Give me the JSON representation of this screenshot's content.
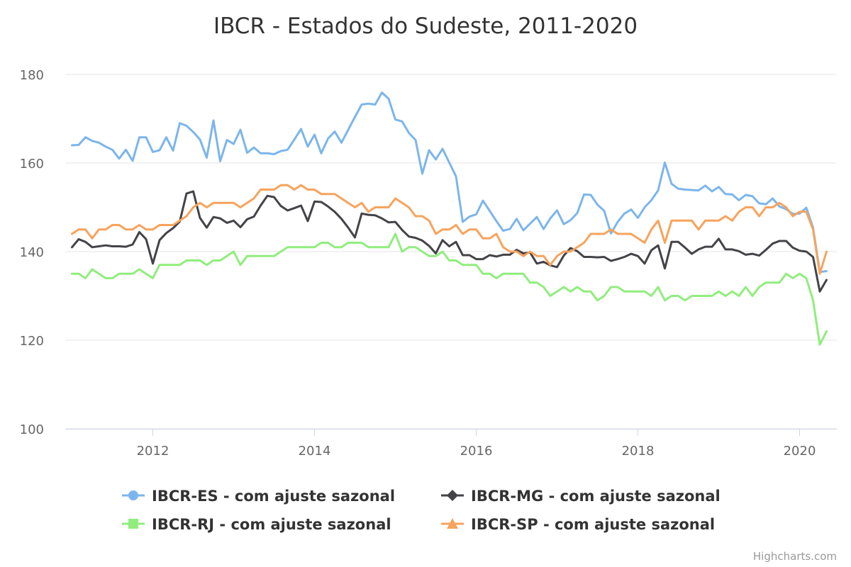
{
  "chart_data": {
    "type": "line",
    "title": "IBCR - Estados do Sudeste, 2011-2020",
    "xlabel": "",
    "ylabel": "",
    "x_start": "2011-01",
    "x_end": "2020-05",
    "xlim": [
      "2011-01",
      "2020-05"
    ],
    "ylim": [
      100,
      180
    ],
    "yticks": [
      100,
      120,
      140,
      160,
      180
    ],
    "xticks": [
      2012,
      2014,
      2016,
      2018,
      2020
    ],
    "grid": true,
    "legend_position": "bottom",
    "series": [
      {
        "name": "IBCR-ES - com ajuste sazonal",
        "color": "#7cb5ec",
        "marker": "circle",
        "values": [
          164.0,
          164.1,
          165.8,
          165.0,
          164.6,
          163.7,
          163.0,
          161.0,
          163.0,
          160.5,
          165.8,
          165.8,
          162.5,
          162.9,
          165.8,
          162.8,
          169.0,
          168.4,
          167.0,
          165.3,
          161.2,
          169.6,
          160.4,
          165.2,
          164.3,
          167.5,
          162.3,
          163.5,
          162.2,
          162.2,
          162.0,
          162.7,
          163.0,
          165.3,
          167.7,
          163.7,
          166.4,
          162.2,
          165.5,
          167.1,
          164.6,
          167.5,
          170.4,
          173.2,
          173.4,
          173.2,
          175.9,
          174.5,
          169.8,
          169.4,
          166.8,
          165.2,
          157.6,
          162.9,
          160.8,
          163.2,
          160.1,
          157.0,
          146.7,
          147.9,
          148.4,
          151.5,
          149.2,
          146.9,
          144.7,
          145.1,
          147.4,
          144.8,
          146.3,
          147.8,
          145.1,
          147.5,
          149.3,
          146.2,
          147.1,
          148.7,
          152.9,
          152.8,
          150.6,
          149.2,
          144.1,
          146.7,
          148.6,
          149.5,
          147.6,
          150.0,
          151.6,
          153.8,
          160.1,
          155.3,
          154.2,
          154.0,
          153.9,
          153.8,
          154.9,
          153.6,
          154.6,
          153.0,
          152.9,
          151.6,
          152.8,
          152.5,
          150.9,
          150.7,
          152.0,
          150.2,
          149.6,
          148.5,
          148.6,
          149.9,
          145.4,
          135.4,
          135.6
        ]
      },
      {
        "name": "IBCR-MG - com ajuste sazonal",
        "color": "#434348",
        "marker": "diamond",
        "values": [
          141.0,
          142.8,
          142.2,
          141.0,
          141.2,
          141.4,
          141.2,
          141.2,
          141.1,
          141.6,
          144.4,
          142.8,
          137.3,
          142.6,
          144.2,
          145.3,
          146.8,
          153.1,
          153.6,
          147.6,
          145.4,
          147.8,
          147.5,
          146.5,
          147.0,
          145.5,
          147.3,
          147.9,
          150.4,
          152.6,
          152.3,
          150.3,
          149.3,
          149.8,
          150.4,
          146.9,
          151.3,
          151.2,
          150.2,
          149.0,
          147.4,
          145.4,
          143.2,
          148.6,
          148.3,
          148.2,
          147.5,
          146.6,
          146.7,
          144.9,
          143.4,
          143.1,
          142.5,
          141.3,
          139.6,
          142.6,
          141.2,
          142.2,
          139.2,
          139.2,
          138.3,
          138.3,
          139.2,
          138.9,
          139.3,
          139.3,
          140.4,
          139.6,
          139.8,
          137.3,
          137.7,
          136.9,
          136.5,
          139.1,
          140.8,
          140.1,
          138.8,
          138.8,
          138.7,
          138.8,
          137.9,
          138.3,
          138.8,
          139.5,
          139.0,
          137.3,
          140.3,
          141.4,
          136.2,
          142.2,
          142.2,
          140.9,
          139.5,
          140.5,
          141.1,
          141.1,
          142.9,
          140.5,
          140.5,
          140.1,
          139.3,
          139.5,
          139.1,
          140.4,
          141.8,
          142.4,
          142.4,
          140.9,
          140.2,
          140.0,
          138.8,
          131.0,
          133.6
        ]
      },
      {
        "name": "IBCR-RJ - com ajuste sazonal",
        "color": "#90ed7d",
        "marker": "square",
        "values": [
          135.0,
          135.0,
          134.0,
          136.0,
          135.0,
          134.0,
          134.0,
          135.0,
          135.0,
          135.0,
          136.0,
          135.0,
          134.0,
          137.0,
          137.0,
          137.0,
          137.0,
          138.0,
          138.0,
          138.0,
          137.0,
          138.0,
          138.0,
          139.0,
          140.0,
          137.0,
          139.0,
          139.0,
          139.0,
          139.0,
          139.0,
          140.0,
          141.0,
          141.0,
          141.0,
          141.0,
          141.0,
          142.0,
          142.0,
          141.0,
          141.0,
          142.0,
          142.0,
          142.0,
          141.0,
          141.0,
          141.0,
          141.0,
          144.0,
          140.0,
          141.0,
          141.0,
          140.0,
          139.0,
          139.0,
          140.0,
          138.0,
          138.0,
          137.0,
          137.0,
          137.0,
          135.0,
          135.0,
          134.0,
          135.0,
          135.0,
          135.0,
          135.0,
          133.0,
          133.0,
          132.0,
          130.0,
          131.0,
          132.0,
          131.0,
          132.0,
          131.0,
          131.0,
          129.0,
          130.0,
          132.0,
          132.0,
          131.0,
          131.0,
          131.0,
          131.0,
          130.0,
          132.0,
          129.0,
          130.0,
          130.0,
          129.0,
          130.0,
          130.0,
          130.0,
          130.0,
          131.0,
          130.0,
          131.0,
          130.0,
          132.0,
          130.0,
          132.0,
          133.0,
          133.0,
          133.0,
          135.0,
          134.0,
          135.0,
          134.0,
          129.0,
          119.0,
          122.0
        ]
      },
      {
        "name": "IBCR-SP - com ajuste sazonal",
        "color": "#f7a35c",
        "marker": "triangle",
        "values": [
          144.0,
          145.0,
          145.0,
          143.0,
          145.0,
          145.0,
          146.0,
          146.0,
          145.0,
          145.0,
          146.0,
          145.0,
          145.0,
          146.0,
          146.0,
          146.0,
          147.0,
          148.0,
          150.0,
          151.0,
          150.0,
          151.0,
          151.0,
          151.0,
          151.0,
          150.0,
          151.0,
          152.0,
          154.0,
          154.0,
          154.0,
          155.0,
          155.0,
          154.0,
          155.0,
          154.0,
          154.0,
          153.0,
          153.0,
          153.0,
          152.0,
          151.0,
          150.0,
          151.0,
          149.0,
          150.0,
          150.0,
          150.0,
          152.0,
          151.0,
          150.0,
          148.0,
          148.0,
          147.0,
          144.0,
          145.0,
          145.0,
          146.0,
          144.0,
          145.0,
          145.0,
          143.0,
          143.0,
          144.0,
          141.0,
          140.0,
          140.0,
          139.0,
          140.0,
          139.0,
          139.0,
          137.0,
          139.0,
          140.0,
          140.0,
          141.0,
          142.0,
          144.0,
          144.0,
          144.0,
          145.0,
          144.0,
          144.0,
          144.0,
          143.0,
          142.0,
          145.0,
          147.0,
          142.0,
          147.0,
          147.0,
          147.0,
          147.0,
          145.0,
          147.0,
          147.0,
          147.0,
          148.0,
          147.0,
          149.0,
          150.0,
          150.0,
          148.0,
          150.0,
          150.0,
          151.0,
          150.0,
          148.0,
          149.0,
          149.0,
          145.0,
          135.0,
          140.0
        ]
      }
    ]
  },
  "credits": "Highcharts.com"
}
